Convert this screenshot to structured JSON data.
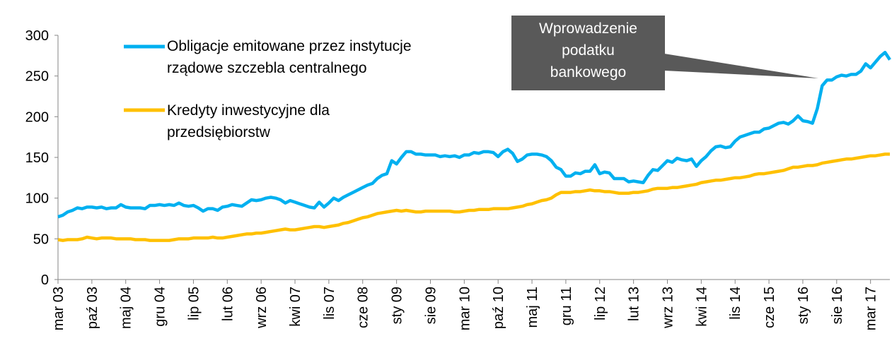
{
  "chart_data": {
    "type": "line",
    "categories": [
      "mar 03",
      null,
      null,
      null,
      null,
      null,
      null,
      "paź 03",
      null,
      null,
      null,
      null,
      null,
      null,
      "maj 04",
      null,
      null,
      null,
      null,
      null,
      null,
      "gru 04",
      null,
      null,
      null,
      null,
      null,
      null,
      "lip 05",
      null,
      null,
      null,
      null,
      null,
      null,
      "lut 06",
      null,
      null,
      null,
      null,
      null,
      null,
      "wrz 06",
      null,
      null,
      null,
      null,
      null,
      null,
      "kwi 07",
      null,
      null,
      null,
      null,
      null,
      null,
      "lis 07",
      null,
      null,
      null,
      null,
      null,
      null,
      "cze 08",
      null,
      null,
      null,
      null,
      null,
      null,
      "sty 09",
      null,
      null,
      null,
      null,
      null,
      null,
      "sie 09",
      null,
      null,
      null,
      null,
      null,
      null,
      "mar 10",
      null,
      null,
      null,
      null,
      null,
      null,
      "paź 10",
      null,
      null,
      null,
      null,
      null,
      null,
      "maj 11",
      null,
      null,
      null,
      null,
      null,
      null,
      "gru 11",
      null,
      null,
      null,
      null,
      null,
      null,
      "lip 12",
      null,
      null,
      null,
      null,
      null,
      null,
      "lut 13",
      null,
      null,
      null,
      null,
      null,
      null,
      "wrz 13",
      null,
      null,
      null,
      null,
      null,
      null,
      "kwi 14",
      null,
      null,
      null,
      null,
      null,
      null,
      "lis 14",
      null,
      null,
      null,
      null,
      null,
      null,
      "cze 15",
      null,
      null,
      null,
      null,
      null,
      null,
      "sty 16",
      null,
      null,
      null,
      null,
      null,
      null,
      "sie 16",
      null,
      null,
      null,
      null,
      null,
      null,
      "mar 17",
      null,
      null,
      null,
      null
    ],
    "series": [
      {
        "name": "Obligacje emitowane przez instytucje\nrządowe szczebla centralnego",
        "color": "#00b0f0",
        "values": [
          77,
          79,
          83,
          85,
          88,
          87,
          89,
          89,
          88,
          89,
          87,
          88,
          88,
          92,
          89,
          88,
          88,
          88,
          87,
          91,
          91,
          92,
          91,
          92,
          91,
          94,
          91,
          90,
          91,
          88,
          84,
          87,
          87,
          85,
          89,
          90,
          92,
          91,
          90,
          94,
          98,
          97,
          98,
          100,
          101,
          100,
          98,
          94,
          97,
          95,
          93,
          91,
          89,
          88,
          95,
          89,
          94,
          100,
          97,
          101,
          104,
          107,
          110,
          113,
          116,
          118,
          124,
          128,
          130,
          146,
          142,
          150,
          157,
          157,
          154,
          154,
          153,
          153,
          153,
          151,
          152,
          151,
          152,
          150,
          153,
          153,
          156,
          155,
          157,
          157,
          156,
          151,
          157,
          160,
          155,
          145,
          148,
          153,
          154,
          154,
          153,
          151,
          146,
          138,
          135,
          127,
          127,
          131,
          130,
          133,
          133,
          141,
          130,
          132,
          131,
          124,
          124,
          124,
          120,
          121,
          120,
          119,
          128,
          135,
          134,
          140,
          146,
          144,
          149,
          147,
          146,
          148,
          139,
          146,
          151,
          158,
          163,
          164,
          162,
          163,
          170,
          175,
          177,
          179,
          181,
          181,
          185,
          186,
          189,
          192,
          193,
          191,
          195,
          201,
          195,
          194,
          192,
          210,
          238,
          245,
          245,
          249,
          251,
          250,
          252,
          252,
          256,
          265,
          260,
          267,
          274,
          279,
          270
        ]
      },
      {
        "name": "Kredyty inwestycyjne dla\nprzedsiębiorstw",
        "color": "#ffc000",
        "values": [
          49,
          48,
          49,
          49,
          49,
          50,
          52,
          51,
          50,
          51,
          51,
          51,
          50,
          50,
          50,
          50,
          49,
          49,
          49,
          48,
          48,
          48,
          48,
          48,
          49,
          50,
          50,
          50,
          51,
          51,
          51,
          51,
          52,
          51,
          51,
          52,
          53,
          54,
          55,
          56,
          56,
          57,
          57,
          58,
          59,
          60,
          61,
          62,
          61,
          61,
          62,
          63,
          64,
          65,
          65,
          64,
          65,
          66,
          67,
          69,
          70,
          72,
          74,
          76,
          77,
          79,
          81,
          82,
          83,
          84,
          85,
          84,
          85,
          84,
          83,
          83,
          84,
          84,
          84,
          84,
          84,
          84,
          83,
          83,
          84,
          85,
          85,
          86,
          86,
          86,
          87,
          87,
          87,
          87,
          88,
          89,
          90,
          92,
          93,
          95,
          97,
          98,
          100,
          104,
          107,
          107,
          107,
          108,
          108,
          109,
          110,
          109,
          109,
          108,
          108,
          107,
          106,
          106,
          106,
          107,
          107,
          108,
          109,
          111,
          112,
          112,
          112,
          113,
          113,
          114,
          115,
          116,
          117,
          119,
          120,
          121,
          122,
          122,
          123,
          124,
          125,
          125,
          126,
          127,
          129,
          130,
          130,
          131,
          132,
          133,
          134,
          136,
          138,
          138,
          139,
          140,
          140,
          141,
          143,
          144,
          145,
          146,
          147,
          148,
          148,
          149,
          150,
          151,
          152,
          152,
          153,
          154,
          154
        ]
      }
    ],
    "annotation": "Wprowadzenie\npodatku\nbankowego",
    "ylim": [
      0,
      300
    ],
    "yticks": [
      0,
      50,
      100,
      150,
      200,
      250,
      300
    ],
    "grid": false,
    "legend": "upper left"
  }
}
